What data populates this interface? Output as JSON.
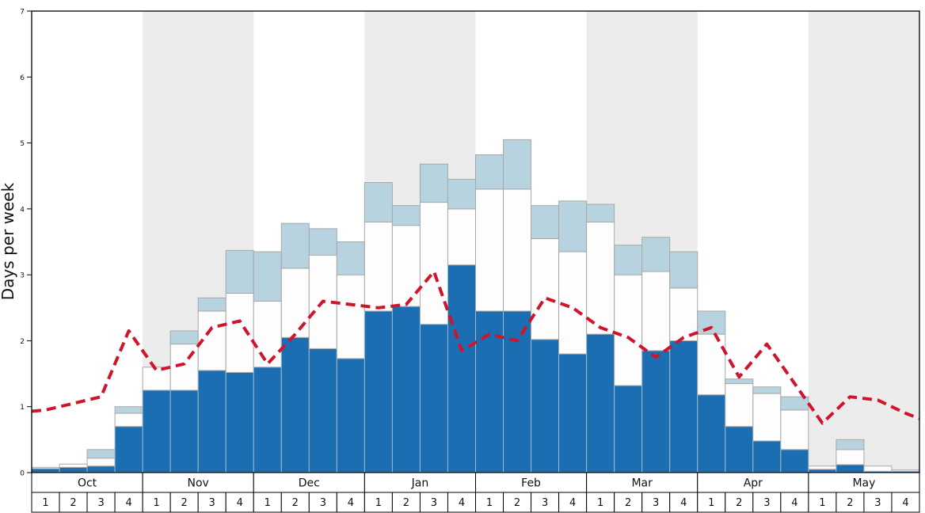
{
  "chart_data": {
    "type": "bar",
    "title": "",
    "ylabel": "Days per week",
    "ylim": [
      0,
      7
    ],
    "yticks": [
      0,
      1,
      2,
      3,
      4,
      5,
      6,
      7
    ],
    "grid": false,
    "legend": "none",
    "months": [
      "Oct",
      "Nov",
      "Dec",
      "Jan",
      "Feb",
      "Mar",
      "Apr",
      "May"
    ],
    "weeks_per_month": 4,
    "week_labels": [
      "1",
      "2",
      "3",
      "4"
    ],
    "band_color": "#ececec",
    "axis_color": "#000000",
    "series": [
      {
        "name": "dark-blue-bars",
        "kind": "bar",
        "color": "#1b6eb2",
        "stroke": "#9fb8c9",
        "values": [
          0.06,
          0.08,
          0.1,
          0.7,
          1.25,
          1.25,
          1.55,
          1.52,
          1.6,
          2.05,
          1.88,
          1.73,
          2.45,
          2.52,
          2.25,
          3.15,
          2.45,
          2.45,
          2.02,
          1.8,
          2.1,
          1.32,
          1.85,
          2.0,
          1.18,
          0.7,
          0.48,
          0.35,
          0.05,
          0.12,
          0.02,
          0.02
        ]
      },
      {
        "name": "white-bars",
        "kind": "bar",
        "color": "#fdfdfd",
        "stroke": "#a8a8a8",
        "values": [
          0.02,
          0.05,
          0.12,
          0.2,
          0.35,
          0.7,
          0.9,
          1.2,
          1.0,
          1.05,
          1.42,
          1.27,
          1.35,
          1.23,
          1.85,
          0.85,
          1.85,
          1.85,
          1.53,
          1.55,
          1.7,
          1.68,
          1.2,
          0.8,
          0.92,
          0.65,
          0.72,
          0.6,
          0.05,
          0.23,
          0.08,
          0.02
        ]
      },
      {
        "name": "light-blue-bars",
        "kind": "bar",
        "color": "#b7d3e0",
        "stroke": "#a8a8a8",
        "values": [
          0.0,
          0.0,
          0.13,
          0.1,
          0.0,
          0.2,
          0.2,
          0.65,
          0.75,
          0.68,
          0.4,
          0.5,
          0.6,
          0.3,
          0.58,
          0.45,
          0.52,
          0.75,
          0.5,
          0.77,
          0.27,
          0.45,
          0.52,
          0.55,
          0.35,
          0.07,
          0.1,
          0.2,
          0.0,
          0.15,
          0.0,
          0.0
        ]
      },
      {
        "name": "red-dashed-line",
        "kind": "line",
        "type": "line",
        "color": "#cf142b",
        "edge_values": [
          0.93,
          0.82
        ],
        "values": [
          0.95,
          1.05,
          1.15,
          2.15,
          1.55,
          1.65,
          2.2,
          2.3,
          1.65,
          2.1,
          2.6,
          2.55,
          2.5,
          2.55,
          3.05,
          1.85,
          2.1,
          2.0,
          2.65,
          2.5,
          2.2,
          2.05,
          1.75,
          2.05,
          2.2,
          1.45,
          1.95,
          1.35,
          0.75,
          1.15,
          1.1,
          0.9
        ]
      }
    ]
  }
}
